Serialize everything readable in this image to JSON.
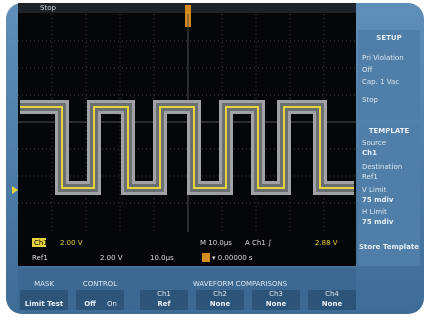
{
  "status": "Stop",
  "readouts": {
    "ch1_label": "Ch1",
    "ch1_scale": "2.00 V",
    "timebase": "M 10.0µs",
    "trigger": "A  Ch1  ∫",
    "trigger_level": "2.88 V",
    "ref_label": "Ref1",
    "ref_scale": "2.00 V",
    "ref_time": "10.0µs",
    "position": "▾ 0.00000 s"
  },
  "side_menu": {
    "setup_title": "SETUP",
    "setup_items": [
      "Pri Violation",
      "Off",
      "Cap. 1 Vac",
      "Stop"
    ],
    "template_title": "TEMPLATE",
    "source_label": "Source",
    "source_value": "Ch1",
    "destination_label": "Destination",
    "destination_value": "Ref1",
    "v_limit_label": "V Limit",
    "v_limit_value": "75 mdiv",
    "h_limit_label": "H Limit",
    "h_limit_value": "75 mdiv",
    "save_button": "Store Template"
  },
  "bottom_menu": {
    "group_header": "WAVEFORM COMPARISONS",
    "buttons": [
      {
        "label": "MASK",
        "value": "Limit Test"
      },
      {
        "label": "CONTROL",
        "value": "Off",
        "option": "On"
      },
      {
        "label": "Ch1",
        "value": "Ref"
      },
      {
        "label": "Ch2",
        "value": "None"
      },
      {
        "label": "Ch3",
        "value": "None"
      },
      {
        "label": "Ch4",
        "value": "None"
      }
    ]
  }
}
